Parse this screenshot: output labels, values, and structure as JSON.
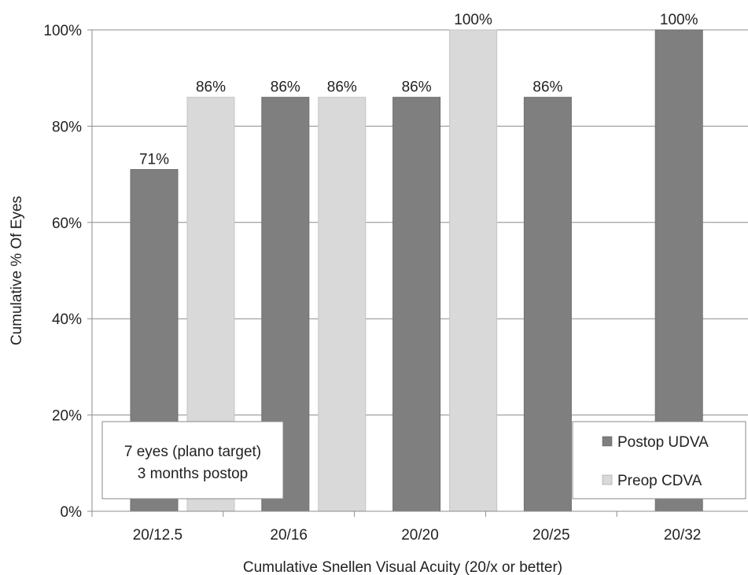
{
  "chart_data": {
    "type": "bar",
    "xlabel": "Cumulative Snellen Visual Acuity (20/x or better)",
    "ylabel": "Cumulative % Of Eyes",
    "ylim": [
      0,
      100
    ],
    "yticks": [
      "0%",
      "20%",
      "40%",
      "60%",
      "80%",
      "100%"
    ],
    "grid": true,
    "categories": [
      "20/12.5",
      "20/16",
      "20/20",
      "20/25",
      "20/32"
    ],
    "series": [
      {
        "name": "Postop UDVA",
        "color": "#7f7f7f",
        "values": [
          71,
          86,
          86,
          86,
          100
        ],
        "labels": [
          "71%",
          "86%",
          "86%",
          "86%",
          "100%"
        ]
      },
      {
        "name": "Preop CDVA",
        "color": "#d9d9d9",
        "values": [
          86,
          86,
          100,
          null,
          null
        ],
        "labels": [
          "86%",
          "86%",
          "100%",
          "",
          ""
        ]
      }
    ],
    "legend_position": "bottom-right",
    "annotation": [
      "7 eyes (plano target)",
      "3 months postop"
    ]
  }
}
